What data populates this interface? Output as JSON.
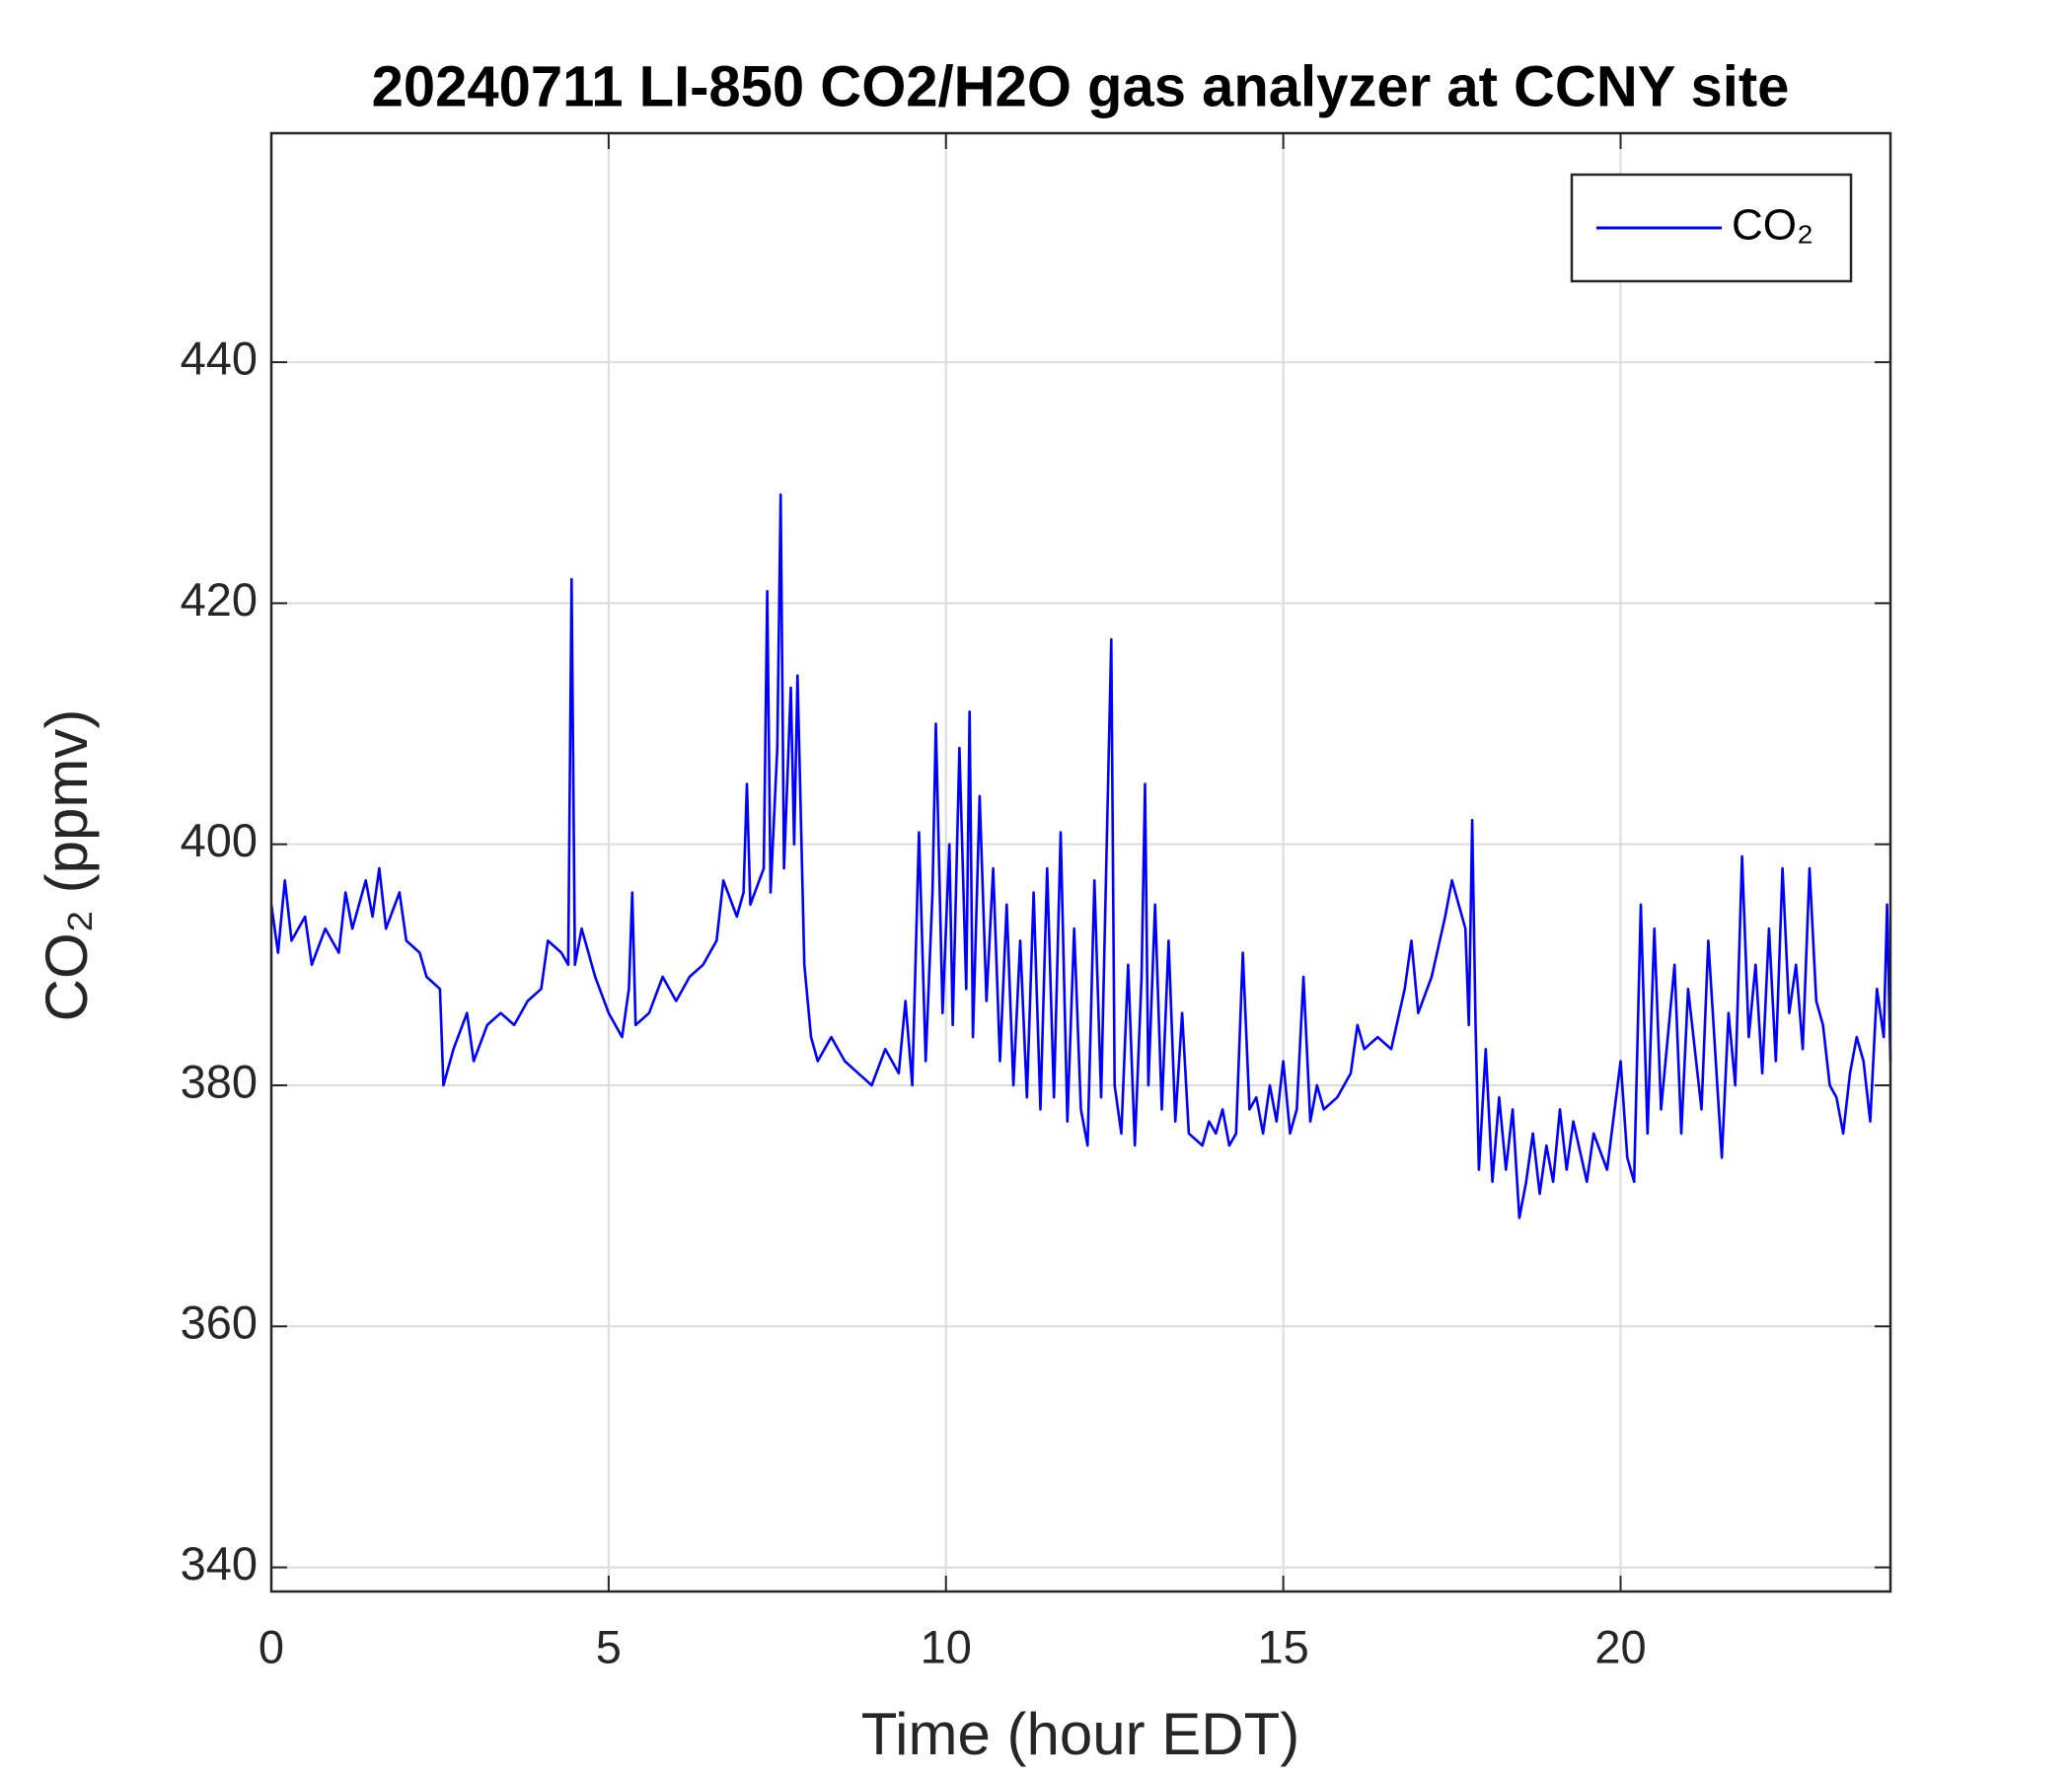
{
  "chart_data": {
    "type": "line",
    "title": "20240711 LI-850 CO2/H2O gas analyzer at CCNY site",
    "x_label": "Time (hour EDT)",
    "y_label": "CO₂ (ppmv)",
    "xlim": [
      0,
      24
    ],
    "xticks": [
      0,
      5,
      10,
      15,
      20
    ],
    "ylim": [
      338,
      459
    ],
    "yticks": [
      340,
      360,
      380,
      400,
      420,
      440
    ],
    "grid": true,
    "legend": "upper right",
    "x": [
      0,
      0.1,
      0.2,
      0.3,
      0.5,
      0.6,
      0.8,
      1.0,
      1.1,
      1.2,
      1.4,
      1.5,
      1.6,
      1.7,
      1.9,
      2.0,
      2.2,
      2.3,
      2.5,
      2.55,
      2.7,
      2.9,
      3.0,
      3.2,
      3.4,
      3.6,
      3.8,
      4.0,
      4.1,
      4.3,
      4.4,
      4.45,
      4.5,
      4.6,
      4.7,
      4.8,
      5.0,
      5.2,
      5.3,
      5.35,
      5.4,
      5.6,
      5.8,
      6.0,
      6.2,
      6.4,
      6.6,
      6.7,
      6.9,
      7.0,
      7.05,
      7.1,
      7.3,
      7.35,
      7.4,
      7.5,
      7.55,
      7.6,
      7.7,
      7.75,
      7.8,
      7.9,
      8.0,
      8.1,
      8.3,
      8.5,
      8.7,
      8.9,
      9.1,
      9.3,
      9.4,
      9.5,
      9.6,
      9.7,
      9.8,
      9.85,
      9.95,
      10.05,
      10.1,
      10.2,
      10.3,
      10.35,
      10.4,
      10.5,
      10.6,
      10.7,
      10.8,
      10.9,
      11.0,
      11.1,
      11.2,
      11.3,
      11.4,
      11.5,
      11.6,
      11.7,
      11.8,
      11.9,
      12.0,
      12.1,
      12.2,
      12.3,
      12.45,
      12.5,
      12.6,
      12.7,
      12.8,
      12.9,
      12.95,
      13.0,
      13.1,
      13.2,
      13.3,
      13.4,
      13.5,
      13.6,
      13.8,
      13.9,
      14.0,
      14.1,
      14.2,
      14.3,
      14.4,
      14.5,
      14.6,
      14.7,
      14.8,
      14.9,
      15.0,
      15.1,
      15.2,
      15.3,
      15.4,
      15.5,
      15.6,
      15.8,
      16.0,
      16.1,
      16.2,
      16.4,
      16.6,
      16.8,
      16.9,
      17.0,
      17.2,
      17.4,
      17.5,
      17.7,
      17.75,
      17.8,
      17.85,
      17.9,
      18.0,
      18.1,
      18.2,
      18.3,
      18.4,
      18.5,
      18.6,
      18.7,
      18.8,
      18.9,
      19.0,
      19.1,
      19.2,
      19.3,
      19.5,
      19.6,
      19.8,
      20.0,
      20.1,
      20.2,
      20.3,
      20.4,
      20.5,
      20.6,
      20.8,
      20.9,
      21.0,
      21.2,
      21.3,
      21.5,
      21.6,
      21.7,
      21.8,
      21.9,
      22.0,
      22.1,
      22.2,
      22.3,
      22.4,
      22.5,
      22.6,
      22.7,
      22.8,
      22.9,
      23.0,
      23.1,
      23.2,
      23.3,
      23.4,
      23.5,
      23.6,
      23.7,
      23.8,
      23.9,
      23.95,
      24.0
    ],
    "series": [
      {
        "name": "CO₂",
        "color": "#0000ff",
        "values": [
          395,
          391,
          397,
          392,
          394,
          390,
          393,
          391,
          396,
          393,
          397,
          394,
          398,
          393,
          396,
          392,
          391,
          389,
          388,
          380,
          383,
          386,
          382,
          385,
          386,
          385,
          387,
          388,
          392,
          391,
          390,
          422,
          390,
          393,
          391,
          389,
          386,
          384,
          388,
          396,
          385,
          386,
          389,
          387,
          389,
          390,
          392,
          397,
          394,
          396,
          405,
          395,
          398,
          421,
          396,
          408,
          429,
          398,
          413,
          400,
          414,
          390,
          384,
          382,
          384,
          382,
          381,
          380,
          383,
          381,
          387,
          380,
          401,
          382,
          396,
          410,
          386,
          400,
          385,
          408,
          388,
          411,
          384,
          404,
          387,
          398,
          382,
          395,
          380,
          392,
          379,
          396,
          378,
          398,
          379,
          401,
          377,
          393,
          378,
          375,
          397,
          379,
          417,
          380,
          376,
          390,
          375,
          389,
          405,
          380,
          395,
          378,
          392,
          377,
          386,
          376,
          375,
          377,
          376,
          378,
          375,
          376,
          391,
          378,
          379,
          376,
          380,
          377,
          382,
          376,
          378,
          389,
          377,
          380,
          378,
          379,
          381,
          385,
          383,
          384,
          383,
          388,
          392,
          386,
          389,
          394,
          397,
          393,
          385,
          402,
          385,
          373,
          383,
          372,
          379,
          373,
          378,
          369,
          372,
          376,
          371,
          375,
          372,
          378,
          373,
          377,
          372,
          376,
          373,
          382,
          374,
          372,
          395,
          376,
          393,
          378,
          390,
          376,
          388,
          378,
          392,
          374,
          386,
          380,
          399,
          384,
          390,
          381,
          393,
          382,
          398,
          386,
          390,
          383,
          398,
          387,
          385,
          380,
          379,
          376,
          381,
          384,
          382,
          377,
          388,
          384,
          395,
          382
        ]
      }
    ]
  }
}
